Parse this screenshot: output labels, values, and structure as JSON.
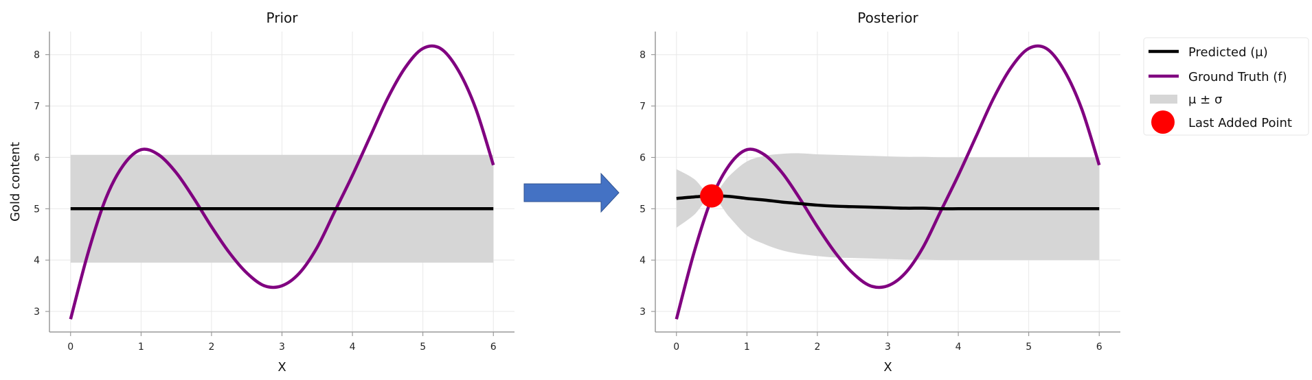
{
  "chart_data": [
    {
      "type": "line",
      "title": "Prior",
      "xlabel": "X",
      "ylabel": "Gold content",
      "xlim": [
        -0.3,
        6.3
      ],
      "ylim": [
        2.6,
        8.45
      ],
      "xticks": [
        "0",
        "1",
        "2",
        "3",
        "4",
        "5",
        "6"
      ],
      "yticks": [
        "3",
        "4",
        "5",
        "6",
        "7",
        "8"
      ],
      "grid": true,
      "x": [
        0,
        0.25,
        0.5,
        0.75,
        1,
        1.25,
        1.5,
        1.75,
        2,
        2.25,
        2.5,
        2.75,
        3,
        3.25,
        3.5,
        3.75,
        4,
        4.25,
        4.5,
        4.75,
        5,
        5.25,
        5.5,
        5.75,
        6
      ],
      "ground_truth": [
        2.85,
        4.15,
        5.2,
        5.85,
        6.15,
        6.05,
        5.7,
        5.2,
        4.65,
        4.15,
        3.75,
        3.5,
        3.5,
        3.75,
        4.25,
        4.95,
        5.65,
        6.4,
        7.15,
        7.75,
        8.12,
        8.12,
        7.7,
        6.95,
        5.85
      ],
      "mean": [
        5,
        5,
        5,
        5,
        5,
        5,
        5,
        5,
        5,
        5,
        5,
        5,
        5,
        5,
        5,
        5,
        5,
        5,
        5,
        5,
        5,
        5,
        5,
        5,
        5
      ],
      "sigma": [
        1.05,
        1.05,
        1.05,
        1.05,
        1.05,
        1.05,
        1.05,
        1.05,
        1.05,
        1.05,
        1.05,
        1.05,
        1.05,
        1.05,
        1.05,
        1.05,
        1.05,
        1.05,
        1.05,
        1.05,
        1.05,
        1.05,
        1.05,
        1.05,
        1.05
      ]
    },
    {
      "type": "line",
      "title": "Posterior",
      "xlabel": "X",
      "ylabel": "",
      "xlim": [
        -0.3,
        6.3
      ],
      "ylim": [
        2.6,
        8.45
      ],
      "xticks": [
        "0",
        "1",
        "2",
        "3",
        "4",
        "5",
        "6"
      ],
      "yticks": [
        "3",
        "4",
        "5",
        "6",
        "7",
        "8"
      ],
      "grid": true,
      "x": [
        0,
        0.25,
        0.5,
        0.75,
        1,
        1.25,
        1.5,
        1.75,
        2,
        2.25,
        2.5,
        2.75,
        3,
        3.25,
        3.5,
        3.75,
        4,
        4.25,
        4.5,
        4.75,
        5,
        5.25,
        5.5,
        5.75,
        6
      ],
      "ground_truth": [
        2.85,
        4.15,
        5.2,
        5.85,
        6.15,
        6.05,
        5.7,
        5.2,
        4.65,
        4.15,
        3.75,
        3.5,
        3.5,
        3.75,
        4.25,
        4.95,
        5.65,
        6.4,
        7.15,
        7.75,
        8.12,
        8.12,
        7.7,
        6.95,
        5.85
      ],
      "mean": [
        5.2,
        5.23,
        5.25,
        5.24,
        5.2,
        5.17,
        5.13,
        5.1,
        5.07,
        5.05,
        5.04,
        5.03,
        5.02,
        5.01,
        5.01,
        5.0,
        5.0,
        5.0,
        5.0,
        5.0,
        5.0,
        5.0,
        5.0,
        5.0,
        5.0
      ],
      "sigma": [
        0.57,
        0.35,
        0.02,
        0.4,
        0.72,
        0.86,
        0.94,
        0.98,
        0.99,
        1.0,
        1.0,
        1.0,
        1.0,
        1.0,
        1.0,
        1.0,
        1.0,
        1.0,
        1.0,
        1.0,
        1.0,
        1.0,
        1.0,
        1.0,
        1.0
      ],
      "last_added_point": {
        "x": 0.5,
        "y": 5.25
      }
    }
  ],
  "legend": {
    "placement": "outside-right-top",
    "entries": [
      "Predicted (μ)",
      "Ground Truth (f)",
      "μ ± σ",
      "Last Added Point"
    ]
  },
  "colors": {
    "mean": "#000000",
    "ground_truth": "#800080",
    "band": "#d6d6d6",
    "point": "#ff0000",
    "arrow": "#4472c4",
    "arrow_edge": "#2f528f"
  }
}
